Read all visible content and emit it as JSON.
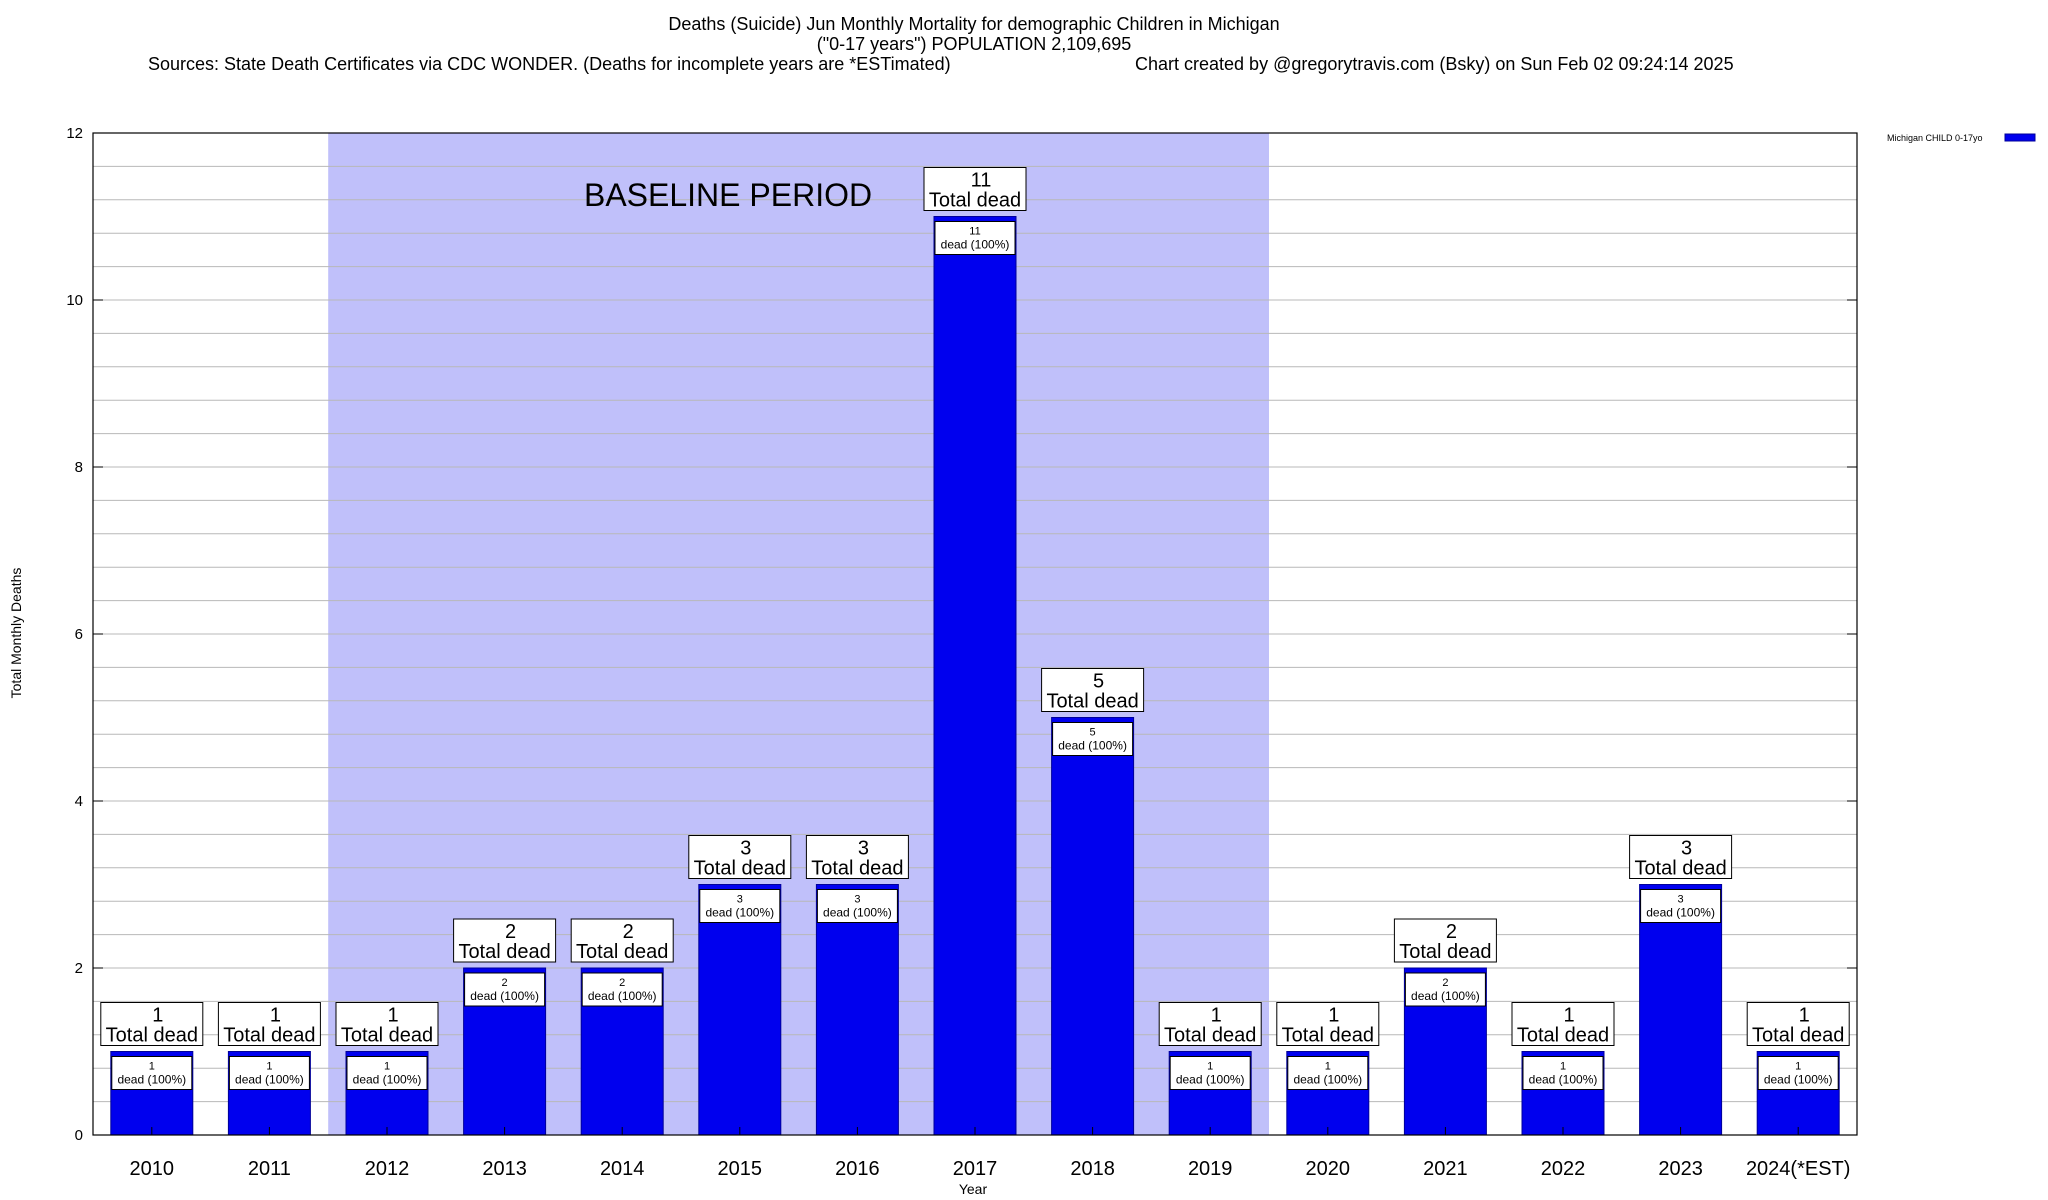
{
  "chart_data": {
    "type": "bar",
    "title_line1": "Deaths (Suicide) Jun Monthly Mortality for demographic Children in Michigan",
    "title_line2": "(\"0-17 years\") POPULATION 2,109,695",
    "sources": "Sources: State Death Certificates via CDC WONDER. (Deaths for incomplete years are *ESTimated)",
    "credit": "Chart created by @gregorytravis.com (Bsky) on Sun Feb 02 09:24:14 2025",
    "xlabel": "Year",
    "ylabel": "Total Monthly Deaths",
    "ylim": [
      0,
      12
    ],
    "yticks": [
      0,
      2,
      4,
      6,
      8,
      10,
      12
    ],
    "minor_step": 0.4,
    "baseline_label": "BASELINE PERIOD",
    "baseline_range": [
      "2012",
      "2019"
    ],
    "legend_label": "Michigan CHILD 0-17yo",
    "total_label": "Total dead",
    "inner_label": "dead (100%)",
    "categories": [
      "2010",
      "2011",
      "2012",
      "2013",
      "2014",
      "2015",
      "2016",
      "2017",
      "2018",
      "2019",
      "2020",
      "2021",
      "2022",
      "2023",
      "2024(*EST)"
    ],
    "series": [
      {
        "name": "Michigan CHILD 0-17yo",
        "values": [
          1,
          1,
          1,
          2,
          2,
          3,
          3,
          11,
          5,
          1,
          1,
          2,
          1,
          3,
          1
        ]
      }
    ],
    "colors": {
      "bar": "#0000ee",
      "bar_top": "#00009a",
      "baseline": "#c0c0fa",
      "grid": "#b8b8b8"
    }
  }
}
